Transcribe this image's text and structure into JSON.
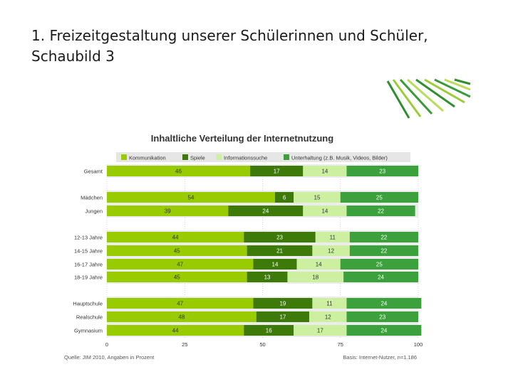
{
  "slide": {
    "title": "1. Freizeitgestaltung unserer Schülerinnen und Schüler, Schaubild 3"
  },
  "chart_data": {
    "type": "bar",
    "orientation": "horizontal",
    "stacked": true,
    "title": "Inhaltliche Verteilung der Internetnutzung",
    "categories": [
      "Gesamt",
      "Mädchen",
      "Jungen",
      "12-13 Jahre",
      "14-15 Jahre",
      "16-17 Jahre",
      "18-19 Jahre",
      "Hauptschule",
      "Realschule",
      "Gymnasium"
    ],
    "series": [
      {
        "name": "Kommunikation",
        "color": "#99cc00",
        "values": [
          46,
          54,
          39,
          44,
          45,
          47,
          45,
          47,
          48,
          44
        ]
      },
      {
        "name": "Spiele",
        "color": "#3d7a0a",
        "values": [
          17,
          6,
          24,
          23,
          21,
          14,
          13,
          19,
          17,
          16
        ]
      },
      {
        "name": "Informationssuche",
        "color": "#ccf0a0",
        "values": [
          14,
          15,
          14,
          11,
          12,
          14,
          18,
          11,
          12,
          17
        ]
      },
      {
        "name": "Unterhaltung (z.B. Musik, Videos, Bilder)",
        "color": "#3ca03c",
        "values": [
          23,
          25,
          22,
          22,
          22,
          25,
          24,
          24,
          23,
          24
        ]
      }
    ],
    "xlim": [
      0,
      100
    ],
    "xticks": [
      0,
      25,
      50,
      75,
      100
    ],
    "source": "Quelle: JIM 2010, Angaben in Prozent",
    "basis": "Basis: Internet-Nutzer, n=1.186"
  }
}
